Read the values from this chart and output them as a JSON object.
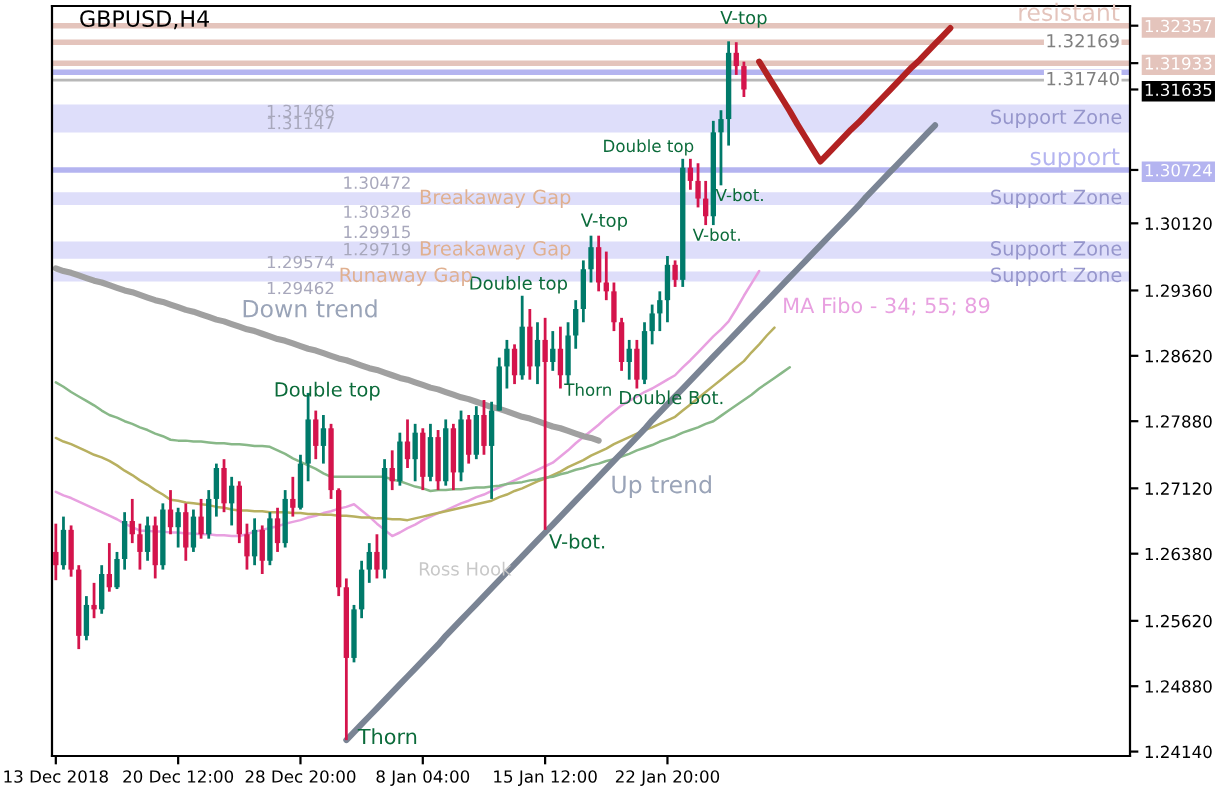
{
  "chart_data": {
    "type": "candlestick",
    "title": "GBPUSD,H4",
    "categories": [
      "13 Dec 2018",
      null,
      null,
      null,
      null,
      null,
      null,
      null,
      null,
      null,
      null,
      null,
      null,
      null,
      null,
      null,
      "20 Dec 12:00",
      null,
      null,
      null,
      null,
      null,
      null,
      null,
      null,
      null,
      null,
      null,
      null,
      null,
      null,
      null,
      "28 Dec 20:00",
      null,
      null,
      null,
      null,
      null,
      null,
      null,
      null,
      null,
      null,
      null,
      null,
      null,
      null,
      null,
      "8 Jan 04:00",
      null,
      null,
      null,
      null,
      null,
      null,
      null,
      null,
      null,
      null,
      null,
      null,
      null,
      null,
      null,
      "15 Jan 12:00",
      null,
      null,
      null,
      null,
      null,
      null,
      null,
      null,
      null,
      null,
      null,
      null,
      null,
      null,
      null,
      "22 Jan 20:00",
      null,
      null,
      null,
      null,
      null,
      null,
      null,
      null,
      null,
      null,
      null,
      null,
      null,
      null,
      null,
      null,
      null,
      null,
      null,
      null,
      null,
      null,
      null,
      null,
      null,
      null,
      null,
      null,
      null,
      null,
      null,
      null,
      null,
      null,
      null,
      null,
      null,
      null,
      null,
      null,
      null,
      null,
      null,
      null,
      null,
      null,
      null,
      null,
      null,
      null,
      null,
      null,
      null,
      null,
      null,
      null,
      null,
      null,
      null,
      null
    ],
    "ohlc": [
      [
        1.264,
        1.2672,
        1.2608,
        1.2625
      ],
      [
        1.2625,
        1.268,
        1.262,
        1.2665
      ],
      [
        1.2665,
        1.267,
        1.2612,
        1.262
      ],
      [
        1.262,
        1.2625,
        1.253,
        1.2545
      ],
      [
        1.2545,
        1.259,
        1.254,
        1.258
      ],
      [
        1.258,
        1.2605,
        1.2565,
        1.2575
      ],
      [
        1.2575,
        1.2625,
        1.257,
        1.2615
      ],
      [
        1.2615,
        1.265,
        1.2595,
        1.26
      ],
      [
        1.26,
        1.264,
        1.2598,
        1.2632
      ],
      [
        1.2632,
        1.2685,
        1.262,
        1.2675
      ],
      [
        1.2675,
        1.27,
        1.265,
        1.266
      ],
      [
        1.266,
        1.2672,
        1.262,
        1.264
      ],
      [
        1.264,
        1.268,
        1.263,
        1.267
      ],
      [
        1.267,
        1.268,
        1.261,
        1.2625
      ],
      [
        1.2625,
        1.2695,
        1.262,
        1.2688
      ],
      [
        1.2688,
        1.271,
        1.266,
        1.2668
      ],
      [
        1.2668,
        1.269,
        1.2645,
        1.2685
      ],
      [
        1.2685,
        1.2695,
        1.263,
        1.2645
      ],
      [
        1.2645,
        1.2688,
        1.264,
        1.268
      ],
      [
        1.268,
        1.27,
        1.2655,
        1.266
      ],
      [
        1.266,
        1.271,
        1.2655,
        1.27
      ],
      [
        1.27,
        1.274,
        1.268,
        1.2735
      ],
      [
        1.2735,
        1.2745,
        1.2685,
        1.2695
      ],
      [
        1.2695,
        1.2725,
        1.267,
        1.2715
      ],
      [
        1.2715,
        1.272,
        1.265,
        1.266
      ],
      [
        1.266,
        1.2672,
        1.262,
        1.2635
      ],
      [
        1.2635,
        1.2678,
        1.2625,
        1.2665
      ],
      [
        1.2665,
        1.267,
        1.2615,
        1.263
      ],
      [
        1.263,
        1.2685,
        1.2625,
        1.2678
      ],
      [
        1.2678,
        1.269,
        1.264,
        1.265
      ],
      [
        1.265,
        1.271,
        1.2645,
        1.27
      ],
      [
        1.27,
        1.2725,
        1.268,
        1.269
      ],
      [
        1.269,
        1.275,
        1.2688,
        1.274
      ],
      [
        1.274,
        1.282,
        1.272,
        1.279
      ],
      [
        1.279,
        1.28,
        1.2745,
        1.276
      ],
      [
        1.276,
        1.2795,
        1.274,
        1.278
      ],
      [
        1.278,
        1.2785,
        1.27,
        1.271
      ],
      [
        1.271,
        1.2712,
        1.259,
        1.26
      ],
      [
        1.26,
        1.261,
        1.2427,
        1.252
      ],
      [
        1.252,
        1.258,
        1.2515,
        1.2575
      ],
      [
        1.2575,
        1.263,
        1.2565,
        1.262
      ],
      [
        1.262,
        1.265,
        1.2605,
        1.264
      ],
      [
        1.264,
        1.266,
        1.261,
        1.262
      ],
      [
        1.262,
        1.2745,
        1.261,
        1.2735
      ],
      [
        1.2735,
        1.2755,
        1.271,
        1.272
      ],
      [
        1.272,
        1.2775,
        1.2715,
        1.2765
      ],
      [
        1.2765,
        1.279,
        1.2735,
        1.2745
      ],
      [
        1.2745,
        1.2785,
        1.272,
        1.2775
      ],
      [
        1.2775,
        1.278,
        1.271,
        1.2725
      ],
      [
        1.2725,
        1.2785,
        1.272,
        1.277
      ],
      [
        1.277,
        1.2778,
        1.271,
        1.272
      ],
      [
        1.272,
        1.279,
        1.2715,
        1.278
      ],
      [
        1.278,
        1.2785,
        1.271,
        1.273
      ],
      [
        1.273,
        1.28,
        1.272,
        1.279
      ],
      [
        1.279,
        1.2795,
        1.274,
        1.275
      ],
      [
        1.275,
        1.2805,
        1.2745,
        1.2795
      ],
      [
        1.2795,
        1.2812,
        1.275,
        1.276
      ],
      [
        1.276,
        1.281,
        1.27,
        1.28
      ],
      [
        1.28,
        1.286,
        1.28,
        1.285
      ],
      [
        1.285,
        1.288,
        1.2825,
        1.287
      ],
      [
        1.287,
        1.2875,
        1.283,
        1.284
      ],
      [
        1.284,
        1.293,
        1.2835,
        1.2895
      ],
      [
        1.2895,
        1.2915,
        1.2835,
        1.285
      ],
      [
        1.285,
        1.29,
        1.283,
        1.288
      ],
      [
        1.288,
        1.2905,
        1.2665,
        1.2855
      ],
      [
        1.2855,
        1.289,
        1.2845,
        1.287
      ],
      [
        1.287,
        1.2895,
        1.2825,
        1.284
      ],
      [
        1.284,
        1.29,
        1.283,
        1.2885
      ],
      [
        1.2885,
        1.2925,
        1.287,
        1.2915
      ],
      [
        1.2915,
        1.297,
        1.29,
        1.296
      ],
      [
        1.296,
        1.2998,
        1.2945,
        1.2985
      ],
      [
        1.2985,
        1.2998,
        1.2935,
        1.2945
      ],
      [
        1.2945,
        1.298,
        1.2925,
        1.2935
      ],
      [
        1.2935,
        1.2945,
        1.289,
        1.29
      ],
      [
        1.29,
        1.2905,
        1.2845,
        1.2855
      ],
      [
        1.2855,
        1.288,
        1.2835,
        1.287
      ],
      [
        1.287,
        1.288,
        1.2825,
        1.2835
      ],
      [
        1.2835,
        1.29,
        1.283,
        1.289
      ],
      [
        1.289,
        1.292,
        1.2875,
        1.291
      ],
      [
        1.291,
        1.2935,
        1.289,
        1.2925
      ],
      [
        1.2925,
        1.2975,
        1.29,
        1.2965
      ],
      [
        1.2965,
        1.297,
        1.294,
        1.2948
      ],
      [
        1.2948,
        1.3085,
        1.294,
        1.3075
      ],
      [
        1.3075,
        1.3085,
        1.305,
        1.306
      ],
      [
        1.306,
        1.308,
        1.303,
        1.304
      ],
      [
        1.304,
        1.306,
        1.301,
        1.302
      ],
      [
        1.302,
        1.3128,
        1.301,
        1.3115
      ],
      [
        1.3115,
        1.314,
        1.3055,
        1.313
      ],
      [
        1.313,
        1.3218,
        1.31,
        1.3205
      ],
      [
        1.3205,
        1.3217,
        1.318,
        1.319
      ],
      [
        1.319,
        1.3195,
        1.3155,
        1.31635
      ],
      null,
      null,
      null,
      null,
      null,
      null,
      null,
      null,
      null,
      null,
      null,
      null,
      null,
      null,
      null,
      null,
      null,
      null,
      null,
      null,
      null,
      null,
      null,
      null,
      null,
      null,
      null,
      null,
      null,
      null,
      null,
      null,
      null,
      null,
      null,
      null,
      null,
      null,
      null,
      null,
      null,
      null,
      null,
      null,
      null,
      null,
      null,
      null,
      null,
      null
    ],
    "colors": [
      "#d4144c",
      "#007a6a",
      "#d4144c",
      "#d4144c",
      "#007a6a",
      "#d4144c",
      "#007a6a",
      "#d4144c",
      "#007a6a",
      "#007a6a",
      "#d4144c",
      "#d4144c",
      "#007a6a",
      "#d4144c",
      "#007a6a",
      "#d4144c",
      "#007a6a",
      "#d4144c",
      "#007a6a",
      "#d4144c",
      "#007a6a",
      "#007a6a",
      "#d4144c",
      "#007a6a",
      "#d4144c",
      "#d4144c",
      "#007a6a",
      "#d4144c",
      "#007a6a",
      "#d4144c",
      "#007a6a",
      "#d4144c",
      "#007a6a",
      "#007a6a",
      "#d4144c",
      "#007a6a",
      "#d4144c",
      "#d4144c",
      "#d4144c",
      "#007a6a",
      "#007a6a",
      "#007a6a",
      "#d4144c",
      "#007a6a",
      "#d4144c",
      "#007a6a",
      "#d4144c",
      "#007a6a",
      "#d4144c",
      "#007a6a",
      "#d4144c",
      "#007a6a",
      "#d4144c",
      "#007a6a",
      "#d4144c",
      "#007a6a",
      "#d4144c",
      "#007a6a",
      "#007a6a",
      "#007a6a",
      "#d4144c",
      "#007a6a",
      "#d4144c",
      "#007a6a",
      "#d4144c",
      "#007a6a",
      "#d4144c",
      "#007a6a",
      "#007a6a",
      "#007a6a",
      "#007a6a",
      "#d4144c",
      "#d4144c",
      "#d4144c",
      "#d4144c",
      "#007a6a",
      "#d4144c",
      "#007a6a",
      "#007a6a",
      "#007a6a",
      "#007a6a",
      "#d4144c",
      "#007a6a",
      "#d4144c",
      "#d4144c",
      "#d4144c",
      "#007a6a",
      "#007a6a",
      "#007a6a",
      "#d4144c",
      "#d4144c",
      null,
      null,
      null,
      null,
      null,
      null,
      null,
      null,
      null,
      null,
      null,
      null,
      null,
      null,
      null,
      null,
      null,
      null,
      null,
      null,
      null,
      null,
      null,
      null,
      null,
      null,
      null,
      null,
      null,
      null,
      null,
      null,
      null,
      null,
      null,
      null,
      null,
      null,
      null,
      null,
      null,
      null,
      null,
      null,
      null,
      null,
      null,
      null,
      null,
      null
    ],
    "series": [
      {
        "type": "line",
        "color": "#e8a0e0",
        "values": [
          1.2708,
          1.2704,
          1.2701,
          1.2697,
          1.2693,
          1.2689,
          1.2685,
          1.2681,
          1.2677,
          1.2672,
          1.2668,
          1.2664,
          1.2664,
          1.2663,
          1.2663,
          1.2662,
          1.2662,
          1.2661,
          1.2661,
          1.266,
          1.266,
          1.2659,
          1.2659,
          1.2658,
          1.2658,
          1.266,
          1.2663,
          1.2665,
          1.2667,
          1.2669,
          1.2672,
          1.2674,
          1.2676,
          1.2679,
          1.2681,
          1.2684,
          1.2686,
          1.2689,
          1.2691,
          1.2694,
          1.2687,
          1.268,
          1.2672,
          1.2665,
          1.2658,
          1.2662,
          1.2667,
          1.2671,
          1.2676,
          1.268,
          1.2684,
          1.2687,
          1.2691,
          1.2695,
          1.2698,
          1.2702,
          1.2705,
          1.2709,
          1.2713,
          1.2717,
          1.2721,
          1.2725,
          1.2729,
          1.2733,
          1.2737,
          1.2741,
          1.2748,
          1.2755,
          1.2763,
          1.277,
          1.2777,
          1.2784,
          1.2792,
          1.2799,
          1.2806,
          1.2811,
          1.2816,
          1.2821,
          1.2825,
          1.283,
          1.2835,
          1.284,
          1.2849,
          1.2857,
          1.2866,
          1.2875,
          1.2884,
          1.2892,
          1.2901,
          1.2915,
          1.293,
          1.2944,
          1.2958,
          null,
          null,
          null,
          null,
          null,
          null,
          null,
          null,
          null,
          null,
          null,
          null,
          null,
          null,
          null,
          null,
          null,
          null,
          null,
          null,
          null,
          null,
          null,
          null,
          null,
          null,
          null,
          null,
          null,
          null,
          null,
          null,
          null,
          null,
          null,
          null,
          null,
          null,
          null,
          null,
          null,
          null,
          null,
          null,
          null,
          null,
          null,
          null
        ]
      },
      {
        "type": "line",
        "color": "#b8b060",
        "values": [
          1.2769,
          1.2765,
          1.2762,
          1.2758,
          1.2754,
          1.275,
          1.2747,
          1.2743,
          1.2738,
          1.2732,
          1.2727,
          1.2721,
          1.2716,
          1.271,
          1.2705,
          1.2699,
          1.2698,
          1.2696,
          1.2695,
          1.2694,
          1.2693,
          1.2691,
          1.269,
          1.2688,
          1.2687,
          1.2687,
          1.2686,
          1.2686,
          1.2685,
          1.2685,
          1.2685,
          1.2684,
          1.2684,
          1.2683,
          1.2683,
          1.2682,
          1.2682,
          1.2681,
          1.2681,
          1.268,
          1.2679,
          1.2679,
          1.2678,
          1.2678,
          1.2677,
          1.2677,
          1.2676,
          1.2678,
          1.268,
          1.2682,
          1.2684,
          1.2686,
          1.2688,
          1.269,
          1.2692,
          1.2694,
          1.2696,
          1.2698,
          1.2702,
          1.2705,
          1.2709,
          1.2712,
          1.2716,
          1.272,
          1.2723,
          1.2727,
          1.2731,
          1.2736,
          1.274,
          1.2744,
          1.2749,
          1.2753,
          1.2757,
          1.2762,
          1.2766,
          1.277,
          1.2774,
          1.2778,
          1.2781,
          1.2785,
          1.2789,
          1.2793,
          1.28,
          1.2807,
          1.2814,
          1.2821,
          1.2828,
          1.2835,
          1.2842,
          1.2849,
          1.2856,
          1.2866,
          1.2875,
          1.2885,
          1.2894,
          null,
          null,
          null,
          null,
          null,
          null,
          null,
          null,
          null,
          null,
          null,
          null,
          null,
          null,
          null,
          null,
          null,
          null,
          null,
          null,
          null,
          null,
          null,
          null,
          null,
          null,
          null,
          null,
          null,
          null,
          null,
          null,
          null,
          null,
          null,
          null,
          null,
          null,
          null,
          null,
          null,
          null,
          null,
          null,
          null,
          null
        ]
      },
      {
        "type": "line",
        "color": "#88b888",
        "values": [
          1.2832,
          1.2827,
          1.2821,
          1.2816,
          1.2811,
          1.2806,
          1.28,
          1.2795,
          1.2792,
          1.2788,
          1.2785,
          1.2781,
          1.2778,
          1.2774,
          1.2771,
          1.2767,
          1.2766,
          1.2766,
          1.2765,
          1.2765,
          1.2764,
          1.2763,
          1.2763,
          1.2762,
          1.2762,
          1.2761,
          1.276,
          1.276,
          1.2759,
          1.2755,
          1.2751,
          1.2746,
          1.2742,
          1.2738,
          1.2734,
          1.2729,
          1.2725,
          1.2725,
          1.2725,
          1.2725,
          1.2725,
          1.2725,
          1.2725,
          1.2725,
          1.2722,
          1.272,
          1.2717,
          1.2714,
          1.2712,
          1.2709,
          1.271,
          1.271,
          1.2711,
          1.2711,
          1.2712,
          1.2713,
          1.2713,
          1.2714,
          1.2715,
          1.2717,
          1.2718,
          1.2719,
          1.2721,
          1.2722,
          1.2724,
          1.2725,
          1.2728,
          1.273,
          1.2733,
          1.2735,
          1.2738,
          1.274,
          1.2743,
          1.2745,
          1.2748,
          1.2751,
          1.2755,
          1.2758,
          1.2761,
          1.2765,
          1.2768,
          1.2771,
          1.2775,
          1.2778,
          1.2781,
          1.2785,
          1.2788,
          1.2794,
          1.28,
          1.2806,
          1.2812,
          1.2818,
          1.2825,
          1.2831,
          1.2837,
          1.2843,
          1.2849,
          null,
          null,
          null,
          null,
          null,
          null,
          null,
          null,
          null,
          null,
          null,
          null,
          null,
          null,
          null,
          null,
          null,
          null,
          null,
          null,
          null,
          null,
          null,
          null,
          null,
          null,
          null,
          null,
          null,
          null,
          null,
          null,
          null,
          null,
          null,
          null,
          null,
          null,
          null,
          null,
          null,
          null,
          null,
          null
        ]
      },
      {
        "type": "line",
        "color": "#a0a0a0",
        "values": [
          1.2961,
          1.2958,
          1.2956,
          1.2953,
          1.295,
          1.2947,
          1.2945,
          1.2942,
          1.2939,
          1.2936,
          1.2934,
          1.2931,
          1.2928,
          1.2925,
          1.2923,
          1.292,
          1.2917,
          1.2914,
          1.2912,
          1.2909,
          1.2906,
          1.2903,
          1.2901,
          1.2898,
          1.2895,
          1.2892,
          1.289,
          1.2887,
          1.2884,
          1.2881,
          1.2879,
          1.2876,
          1.2873,
          1.287,
          1.2868,
          1.2865,
          1.2862,
          1.2859,
          1.2857,
          1.2854,
          1.2851,
          1.2848,
          1.2846,
          1.2843,
          1.284,
          1.2837,
          1.2835,
          1.2832,
          1.2829,
          1.2826,
          1.2824,
          1.2821,
          1.2818,
          1.2815,
          1.2813,
          1.281,
          1.2807,
          1.2804,
          1.2802,
          1.2799,
          1.2796,
          1.2793,
          1.2791,
          1.2788,
          1.2785,
          1.2782,
          1.278,
          1.2777,
          1.2774,
          1.2771,
          1.2769,
          1.2766,
          null,
          null,
          null,
          null,
          null,
          null,
          null,
          null,
          null,
          null,
          null,
          null,
          null,
          null,
          null,
          null,
          null,
          null,
          null,
          null,
          null,
          null,
          null,
          null,
          null,
          null,
          null,
          null,
          null,
          null,
          null,
          null,
          null,
          null,
          null,
          null,
          null,
          null,
          null,
          null,
          null,
          null,
          null,
          null,
          null,
          null,
          null,
          null,
          null,
          null,
          null,
          null,
          null,
          null,
          null,
          null,
          null,
          null,
          null,
          null,
          null,
          null,
          null,
          null,
          null,
          null,
          null,
          null,
          null
        ]
      },
      {
        "type": "line",
        "color": "#7a8494",
        "values": [
          null,
          null,
          null,
          null,
          null,
          null,
          null,
          null,
          null,
          null,
          null,
          null,
          null,
          null,
          null,
          null,
          null,
          null,
          null,
          null,
          null,
          null,
          null,
          null,
          null,
          null,
          null,
          null,
          null,
          null,
          null,
          null,
          null,
          null,
          null,
          null,
          null,
          null,
          1.2427,
          1.2436,
          1.2445,
          1.2454,
          1.2463,
          1.2472,
          1.2481,
          1.249,
          1.2499,
          1.2508,
          1.2517,
          1.2526,
          1.2535,
          1.2545,
          1.2554,
          1.2563,
          1.2572,
          1.2581,
          1.259,
          1.2599,
          1.2608,
          1.2617,
          1.2626,
          1.2635,
          1.2644,
          1.2653,
          1.2662,
          1.2671,
          1.268,
          1.2689,
          1.2698,
          1.2707,
          1.2716,
          1.2725,
          1.2734,
          1.2743,
          1.2752,
          1.2761,
          1.277,
          1.2779,
          1.2789,
          1.2798,
          1.2807,
          1.2816,
          1.2825,
          1.2834,
          1.2843,
          1.2852,
          1.2861,
          1.287,
          1.2879,
          1.2888,
          1.2897,
          1.2906,
          1.2915,
          1.2924,
          1.2933,
          1.2942,
          1.2951,
          1.296,
          1.2969,
          1.2978,
          1.2987,
          1.2996,
          1.3005,
          1.3014,
          1.3023,
          1.3032,
          1.3042,
          1.3051,
          1.306,
          1.3069,
          1.3078,
          1.3087,
          1.3096,
          1.3105,
          1.3114,
          1.3123,
          null,
          null,
          null,
          null,
          null,
          null,
          null,
          null,
          null,
          null,
          null,
          null,
          null,
          null,
          null,
          null,
          null,
          null,
          null,
          null,
          null,
          null,
          null,
          null,
          null
        ]
      },
      {
        "type": "line",
        "color": "#b22222",
        "values": [
          null,
          null,
          null,
          null,
          null,
          null,
          null,
          null,
          null,
          null,
          null,
          null,
          null,
          null,
          null,
          null,
          null,
          null,
          null,
          null,
          null,
          null,
          null,
          null,
          null,
          null,
          null,
          null,
          null,
          null,
          null,
          null,
          null,
          null,
          null,
          null,
          null,
          null,
          null,
          null,
          null,
          null,
          null,
          null,
          null,
          null,
          null,
          null,
          null,
          null,
          null,
          null,
          null,
          null,
          null,
          null,
          null,
          null,
          null,
          null,
          null,
          null,
          null,
          null,
          null,
          null,
          null,
          null,
          null,
          null,
          null,
          null,
          null,
          null,
          null,
          null,
          null,
          null,
          null,
          null,
          null,
          null,
          null,
          null,
          null,
          null,
          null,
          null,
          null,
          null,
          null,
          null,
          1.3195,
          1.3181,
          1.3167,
          1.3153,
          1.3139,
          1.3124,
          1.311,
          1.3096,
          1.3082,
          1.3091,
          1.31,
          1.3109,
          1.3118,
          1.3126,
          1.3135,
          1.3144,
          1.3153,
          1.3162,
          1.3171,
          1.318,
          1.3189,
          1.3197,
          1.3206,
          1.3215,
          1.3224,
          1.3233,
          null,
          null,
          null,
          null,
          null,
          null,
          null,
          null,
          null,
          null,
          null,
          null,
          null,
          null,
          null,
          null,
          null,
          null,
          null,
          null,
          null,
          null,
          null
        ]
      }
    ],
    "ylim": [
      1.2409,
      1.3258
    ],
    "yticks": [
      {
        "value": 1.2414,
        "label": "1.24140"
      },
      {
        "value": 1.2488,
        "label": "1.24880"
      },
      {
        "value": 1.2562,
        "label": "1.25620"
      },
      {
        "value": 1.2638,
        "label": "1.26380"
      },
      {
        "value": 1.2712,
        "label": "1.27120"
      },
      {
        "value": 1.2788,
        "label": "1.27880"
      },
      {
        "value": 1.2862,
        "label": "1.28620"
      },
      {
        "value": 1.2936,
        "label": "1.29360"
      },
      {
        "value": 1.3012,
        "label": "1.30120"
      },
      {
        "value": 1.30724,
        "label": "1.30724"
      },
      {
        "value": 1.31635,
        "label": "1.31635"
      },
      {
        "value": 1.31933,
        "label": "1.31933"
      },
      {
        "value": 1.32357,
        "label": "1.32357"
      }
    ],
    "ref_lines": [
      {
        "axis": "y",
        "value": 1.32357,
        "label": "resistant",
        "color": "#e4c4bc"
      },
      {
        "axis": "y",
        "value": 1.32169,
        "label": "1.32169",
        "color": "#e4c4bc"
      },
      {
        "axis": "y",
        "value": 1.31933,
        "label": null,
        "color": "#e4c4bc"
      },
      {
        "axis": "y",
        "value": 1.3183,
        "label": null,
        "color": "#b4b4f0"
      },
      {
        "axis": "y",
        "value": 1.3174,
        "label": "1.31740",
        "color": "#b8b8b8"
      },
      {
        "axis": "y",
        "value": 1.30724,
        "label": "support",
        "color": "#b4b4f0"
      }
    ],
    "bands": [
      {
        "axis": "y",
        "from": 1.31147,
        "to": 1.31466,
        "label": "Support Zone",
        "color": "#dedefa"
      },
      {
        "axis": "y",
        "from": 1.30326,
        "to": 1.30472,
        "label": "Support Zone",
        "color": "#dedefa"
      },
      {
        "axis": "y",
        "from": 1.29719,
        "to": 1.29915,
        "label": "Support Zone",
        "color": "#dedefa"
      },
      {
        "axis": "y",
        "from": 1.29462,
        "to": 1.29574,
        "label": "Support Zone",
        "color": "#dedefa"
      }
    ],
    "annotations": [
      {
        "text": "V-top",
        "y": 1.3218
      },
      "Double top",
      {
        "text": "Double top",
        "y": 1.293
      },
      {
        "text": "V-top",
        "y": 1.2998
      },
      "Double top",
      "Thorn",
      "Thorn",
      "V-bot.",
      "Double Bot.",
      {
        "text": "V-bot.",
        "y": 1.301
      },
      {
        "text": "V-bot.",
        "y": 1.3055
      },
      "Ross Hook",
      "Down trend",
      "Up trend",
      "MA Fibo - 34; 55; 89",
      {
        "text": "1.31466",
        "y": 1.31466
      },
      {
        "text": "1.31147",
        "y": 1.31147
      },
      {
        "text": "1.30472",
        "y": 1.30472
      },
      {
        "text": "1.30326",
        "y": 1.30326
      },
      {
        "text": "Breakaway Gap",
        "y": 1.30399
      },
      {
        "text": "1.29915",
        "y": 1.29915
      },
      {
        "text": "1.29719",
        "y": 1.29719
      },
      {
        "text": "Breakaway Gap",
        "y": 1.29817
      },
      {
        "text": "1.29574",
        "y": 1.29574
      },
      {
        "text": "1.29462",
        "y": 1.29462
      },
      {
        "text": "Runaway Gap",
        "y": 1.29518
      }
    ],
    "grid": false,
    "legend": false
  }
}
